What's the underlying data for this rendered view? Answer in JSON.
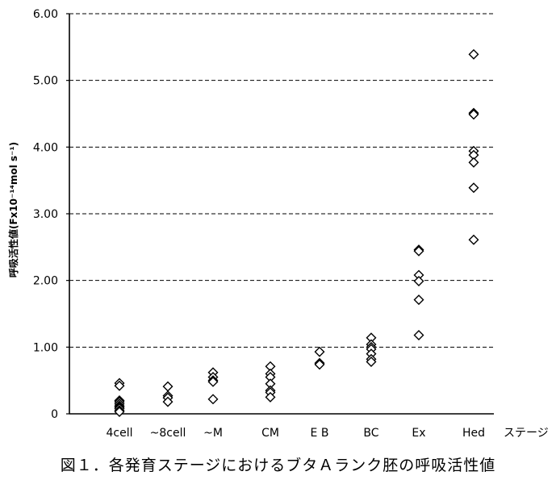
{
  "caption": "図１．各発育ステージにおけるブタＡランク胚の呼吸活性値",
  "chart_data": {
    "type": "scatter",
    "ylabel": "呼吸活性値(Fx10⁻¹⁴mol s⁻¹)",
    "xlabel": "ステージ",
    "ylim": [
      0,
      6
    ],
    "yticks": [
      "0",
      "1.00",
      "2.00",
      "3.00",
      "4.00",
      "5.00",
      "6.00"
    ],
    "grid": "horizontal dashed",
    "marker": "open diamond",
    "categories": [
      "4cell",
      "~8cell",
      "~M",
      "CM",
      "E B",
      "BC",
      "Ex",
      "Hed"
    ],
    "points": [
      [
        0.46,
        0.42,
        0.2,
        0.18,
        0.15,
        0.12,
        0.1,
        0.08,
        0.05,
        0.03
      ],
      [
        0.41,
        0.27,
        0.24,
        0.18
      ],
      [
        0.62,
        0.55,
        0.5,
        0.48,
        0.22
      ],
      [
        0.71,
        0.6,
        0.55,
        0.45,
        0.35,
        0.32,
        0.25
      ],
      [
        0.93,
        0.76,
        0.74
      ],
      [
        1.14,
        1.04,
        1.0,
        0.97,
        0.9,
        0.82,
        0.78
      ],
      [
        2.46,
        2.44,
        2.08,
        1.99,
        1.71,
        1.18
      ],
      [
        5.39,
        4.51,
        4.49,
        3.94,
        3.88,
        3.77,
        3.39,
        2.61
      ]
    ]
  }
}
